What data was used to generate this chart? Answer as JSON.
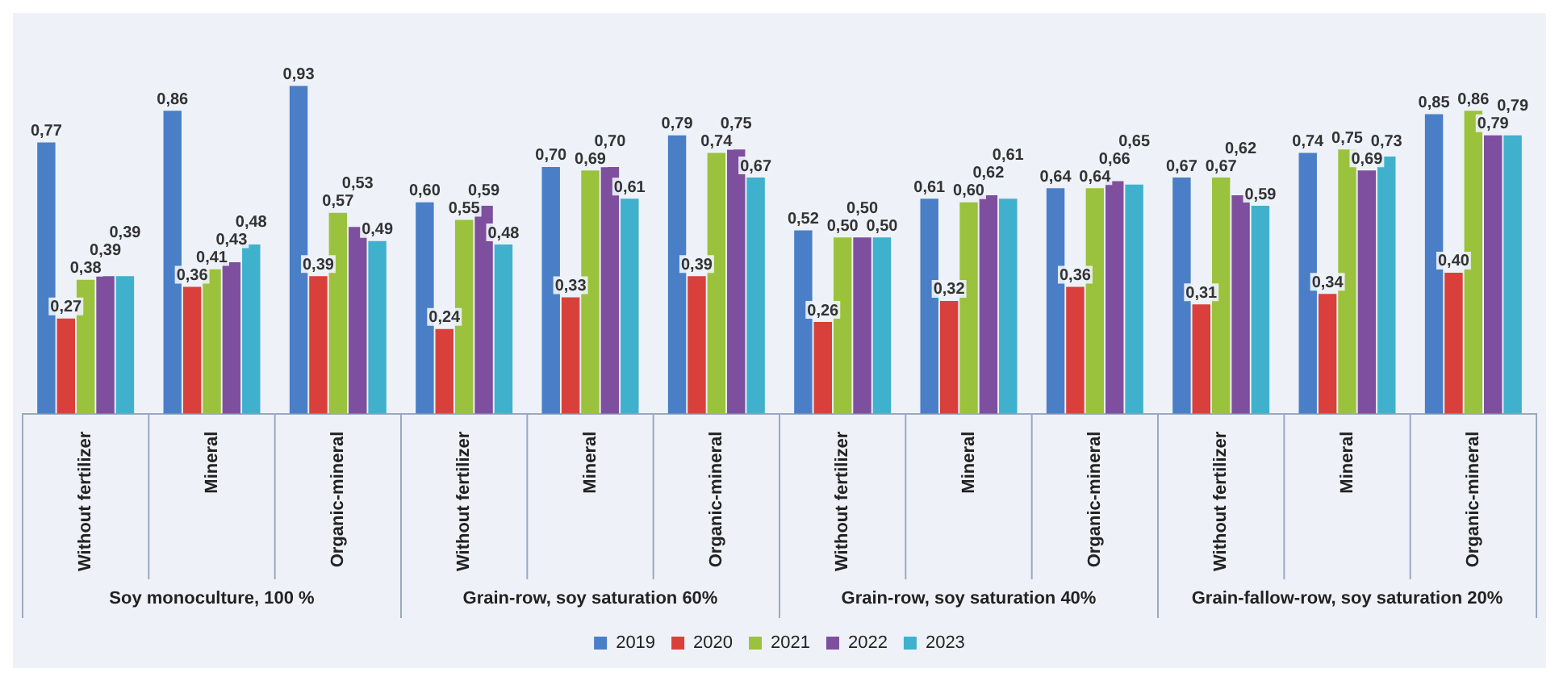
{
  "chart_data": {
    "type": "bar",
    "categories": [
      "Without fertilizer",
      "Mineral",
      "Organic-mineral",
      "Without fertilizer",
      "Mineral",
      "Organic-mineral",
      "Without fertilizer",
      "Mineral",
      "Organic-mineral",
      "Without fertilizer",
      "Mineral",
      "Organic-mineral"
    ],
    "series": [
      {
        "name": "2019",
        "color": "#4a7fc8",
        "values": [
          0.77,
          0.86,
          0.93,
          0.6,
          0.7,
          0.79,
          0.52,
          0.61,
          0.64,
          0.67,
          0.74,
          0.85
        ],
        "value_labels": [
          "0,77",
          "0,86",
          "0,93",
          "0,60",
          "0,70",
          "0,79",
          "0,52",
          "0,61",
          "0,64",
          "0,67",
          "0,74",
          "0,85"
        ]
      },
      {
        "name": "2020",
        "color": "#d9403b",
        "values": [
          0.27,
          0.36,
          0.39,
          0.24,
          0.33,
          0.39,
          0.26,
          0.32,
          0.36,
          0.31,
          0.34,
          0.4
        ],
        "value_labels": [
          "0,27",
          "0,36",
          "0,39",
          "0,24",
          "0,33",
          "0,39",
          "0,26",
          "0,32",
          "0,36",
          "0,31",
          "0,34",
          "0,40"
        ]
      },
      {
        "name": "2021",
        "color": "#9bc23c",
        "values": [
          0.38,
          0.41,
          0.57,
          0.55,
          0.69,
          0.74,
          0.5,
          0.6,
          0.64,
          0.67,
          0.75,
          0.86
        ],
        "value_labels": [
          "0,38",
          "0,41",
          "0,57",
          "0,55",
          "0,69",
          "0,74",
          "0,50",
          "0,60",
          "0,64",
          "0,67",
          "0,75",
          "0,86"
        ]
      },
      {
        "name": "2022",
        "color": "#7e4f9e",
        "values": [
          0.39,
          0.43,
          0.53,
          0.59,
          0.7,
          0.75,
          0.5,
          0.62,
          0.66,
          0.62,
          0.69,
          0.79
        ],
        "value_labels": [
          "0,39",
          "0,43",
          "0,53",
          "0,59",
          "0,70",
          "0,75",
          "0,50",
          "0,62",
          "0,66",
          "0,62",
          "0,69",
          "0,79"
        ]
      },
      {
        "name": "2023",
        "color": "#3fb1cc",
        "values": [
          0.39,
          0.48,
          0.49,
          0.48,
          0.61,
          0.67,
          0.5,
          0.61,
          0.65,
          0.59,
          0.73,
          0.79
        ],
        "value_labels": [
          "0,39",
          "0,48",
          "0,49",
          "0,48",
          "0,61",
          "0,67",
          "0,50",
          "0,61",
          "0,65",
          "0,59",
          "0,73",
          "0,79"
        ]
      }
    ],
    "annotations": [
      "Soy monoculture, 100 %",
      "Grain-row, soy saturation 60%",
      "Grain-row, soy saturation 40%",
      "Grain-fallow-row, soy saturation 20%"
    ],
    "legend": "bottom"
  }
}
